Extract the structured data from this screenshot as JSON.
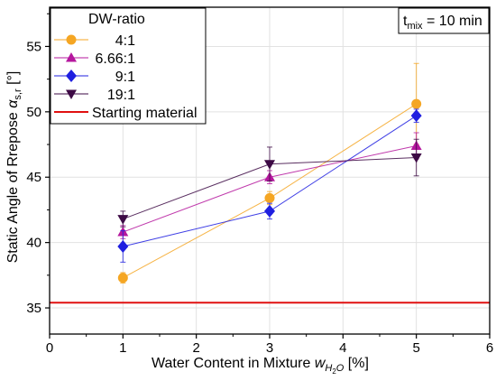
{
  "chart_data": {
    "type": "line",
    "annotation": "t_mix = 10 min",
    "annotation_main": "t",
    "annotation_sub": "mix",
    "annotation_rest": " = 10 min",
    "xlabel_main": "Water Content in Mixture ",
    "xlabel_var": "w",
    "xlabel_sub": "H",
    "xlabel_sub2": "2",
    "xlabel_sub3": "O",
    "xlabel_unit": " [%]",
    "ylabel_main": "Static Angle of Rrepose ",
    "ylabel_var": "α",
    "ylabel_sub": "s,r",
    "ylabel_unit": " [°]",
    "xlim": [
      0,
      6
    ],
    "ylim": [
      33,
      58
    ],
    "xticks": [
      "0",
      "1",
      "2",
      "3",
      "4",
      "5",
      "6"
    ],
    "yticks": [
      "35",
      "40",
      "45",
      "50",
      "55"
    ],
    "grid": true,
    "legend_title": "DW-ratio",
    "legend_position": "top-left",
    "series": [
      {
        "name": "4:1",
        "color": "#f5a623",
        "marker": "circle",
        "x": [
          1,
          3,
          5
        ],
        "y": [
          37.3,
          43.4,
          50.6
        ],
        "err": [
          0.4,
          0.5,
          3.1
        ]
      },
      {
        "name": "6.66:1",
        "color": "#b5179e",
        "marker": "triangle-up",
        "x": [
          1,
          3,
          5
        ],
        "y": [
          40.8,
          45.0,
          47.4
        ],
        "err": [
          0.5,
          0.5,
          1.0
        ]
      },
      {
        "name": "9:1",
        "color": "#1f1fe0",
        "marker": "diamond",
        "x": [
          1,
          3,
          5
        ],
        "y": [
          39.7,
          42.4,
          49.7
        ],
        "err": [
          1.2,
          0.6,
          0.5
        ]
      },
      {
        "name": "19:1",
        "color": "#3d0a45",
        "marker": "triangle-down",
        "x": [
          1,
          3,
          5
        ],
        "y": [
          41.8,
          46.0,
          46.5
        ],
        "err": [
          0.6,
          1.3,
          1.4
        ]
      }
    ],
    "reference_line": {
      "name": "Starting material",
      "y": 35.4,
      "color": "#e01010"
    }
  }
}
